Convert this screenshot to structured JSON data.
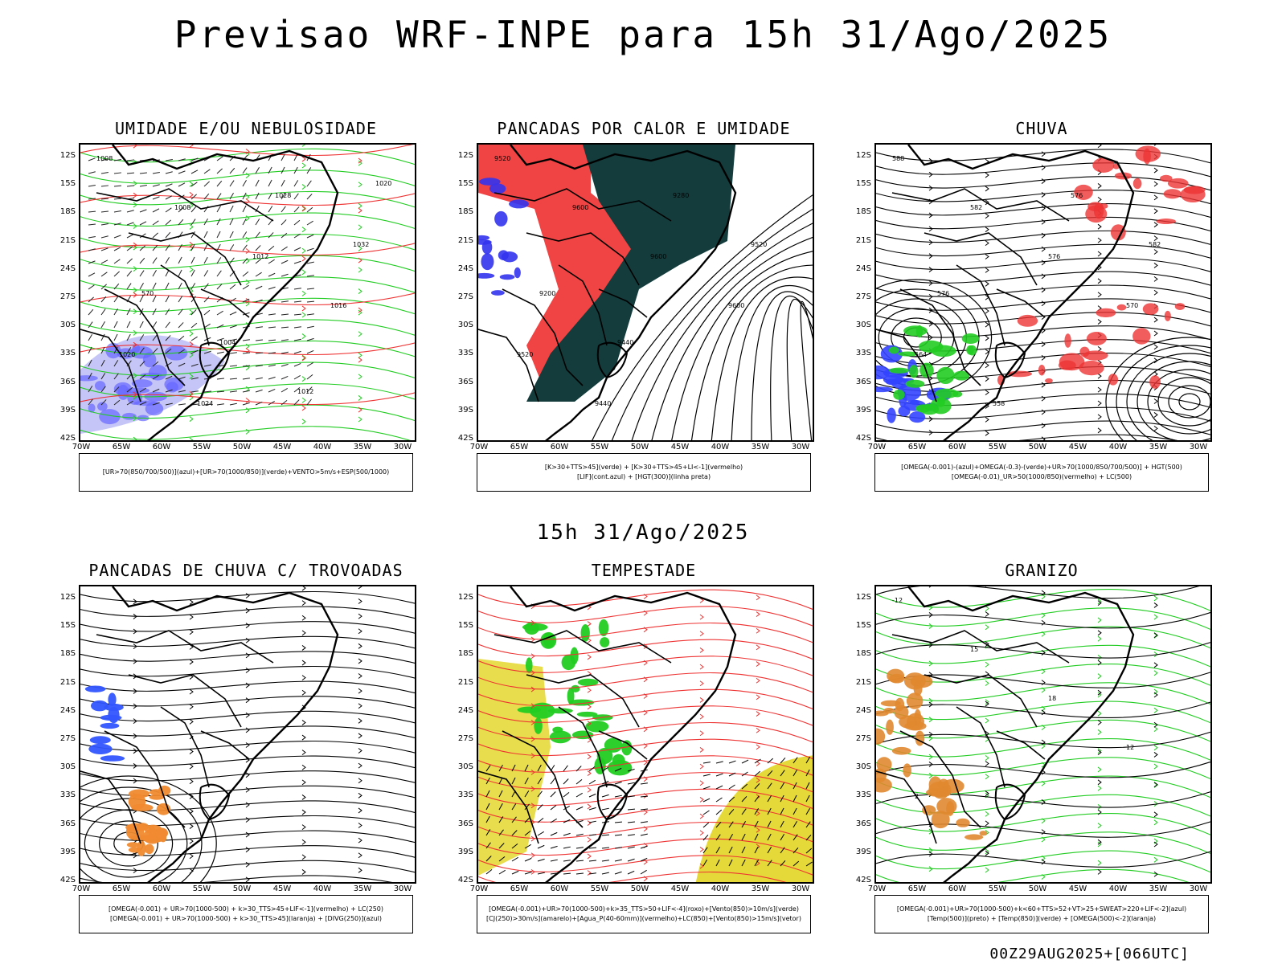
{
  "title": "Previsao WRF-INPE  para 15h 31/Ago/2025",
  "subtitle": "15h 31/Ago/2025",
  "footer": "00Z29AUG2025+[066UTC]",
  "axes": {
    "lat_labels": [
      "12S",
      "15S",
      "18S",
      "21S",
      "24S",
      "27S",
      "30S",
      "33S",
      "36S",
      "39S",
      "42S"
    ],
    "lon_labels": [
      "70W",
      "65W",
      "60W",
      "55W",
      "50W",
      "45W",
      "40W",
      "35W",
      "30W"
    ]
  },
  "panels": [
    {
      "title": "UMIDADE E/OU NEBULOSIDADE",
      "legend": [
        "[UR>70(850/700/500)](azul)+[UR>70(1000/850)](verde)+VENTO>5m/s+ESP(500/1000)"
      ],
      "contour_labels": [
        "1008",
        "1008",
        "1012",
        "1016",
        "1020",
        "1024",
        "1028",
        "1032",
        "570",
        "1004",
        "1012",
        "1020"
      ],
      "colors": {
        "blue": "#6666ff",
        "lightblue": "#b7b7f5",
        "green": "#22cc22",
        "red": "#ee3333"
      }
    },
    {
      "title": "PANCADAS POR CALOR E UMIDADE",
      "legend": [
        "[K>30+TTS>45](verde) + [K>30+TTS>45+LI<-1](vermelho)",
        "[LIF](cont.azul) + [HGT(300)](linha preta)"
      ],
      "contour_labels": [
        "9520",
        "9600",
        "9600",
        "9600",
        "9520",
        "9440",
        "9280",
        "9520",
        "9200",
        "9440"
      ],
      "colors": {
        "dark": "#143c3c",
        "red": "#f04444",
        "blue": "#3333ee"
      }
    },
    {
      "title": "CHUVA",
      "legend": [
        "[OMEGA(-0.001)-(azul)+OMEGA(-0.3)-(verde)+UR>70(1000/850/700/500)] + HGT(500)",
        "[OMEGA(-0.01)_UR>50(1000/850)(vermelho) + LC(500)"
      ],
      "contour_labels": [
        "588",
        "582",
        "576",
        "570",
        "564",
        "558",
        "576",
        "582",
        "576"
      ],
      "colors": {
        "blue": "#3344ff",
        "green": "#22cc22",
        "red": "#ee3333"
      }
    },
    {
      "title": "PANCADAS DE CHUVA C/ TROVOADAS",
      "legend": [
        "[OMEGA(-0.001) + UR>70(1000-500) + k>30_TTS>45+LIF<-1](vermelho) + LC(250)",
        "[OMEGA(-0.001) + UR>70(1000-500) + k>30_TTS>45](laranja) + [DIVG(250)](azul)"
      ],
      "contour_labels": [],
      "colors": {
        "orange": "#f08a30",
        "blue": "#3355ff"
      }
    },
    {
      "title": "TEMPESTADE",
      "legend": [
        "[OMEGA(-0.001)+UR>70(1000-500)+k>35_TTS>50+LIF<-4](roxo)+[Vento(850)>10m/s](verde)",
        "[CJ(250)>30m/s](amarelo)+[Agua_P(40-60mm)](vermelho)+LC(850)+[Vento(850)>15m/s](vetor)"
      ],
      "contour_labels": [],
      "colors": {
        "yellow": "#e5d93a",
        "green": "#22cc22",
        "red": "#ee3333"
      }
    },
    {
      "title": "GRANIZO",
      "legend": [
        "[OMEGA(-0.001)+UR>70(1000-500)+k<60+TTS>52+VT>25+SWEAT>220+LIF<-2](azul)",
        "[Temp(500)](preto) + [Temp(850)](verde) + [OMEGA(500)<-2](laranja)"
      ],
      "contour_labels": [
        "-12",
        "15",
        "18",
        "12",
        "2"
      ],
      "colors": {
        "green": "#22cc22",
        "orange": "#e08830"
      }
    }
  ]
}
